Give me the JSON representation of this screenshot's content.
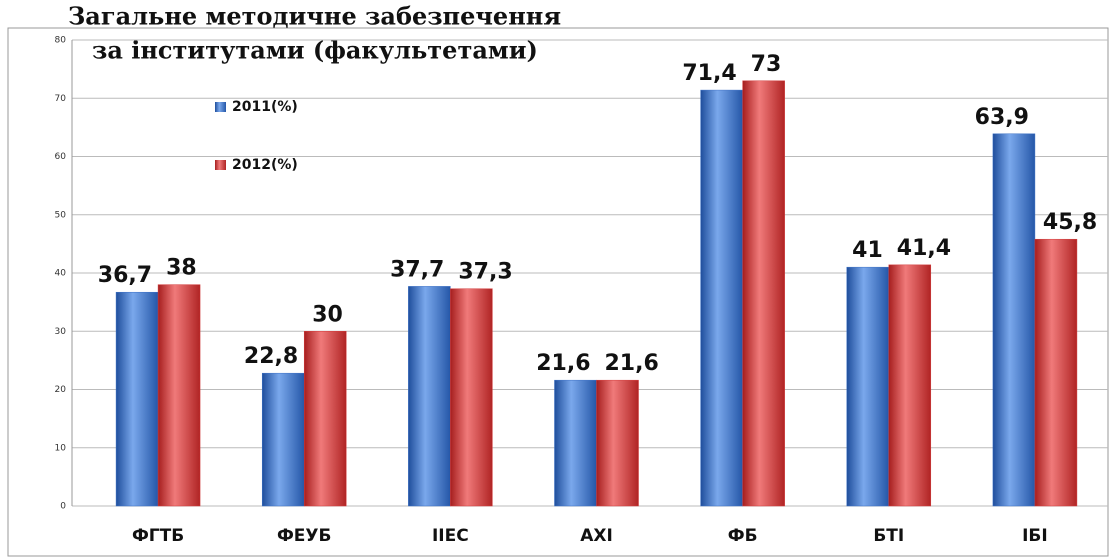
{
  "chart_data": {
    "type": "bar",
    "title": [
      "Загальне методичне забезпечення",
      "за інститутами (факультетами)"
    ],
    "categories": [
      "ФГТБ",
      "ФЕУБ",
      "ІІЕС",
      "АХІ",
      "ФБ",
      "БТІ",
      "ІБІ"
    ],
    "series": [
      {
        "name": "2011(%)",
        "color": "#3a6fc4",
        "values": [
          36.7,
          22.8,
          37.7,
          21.6,
          71.4,
          41,
          63.9
        ],
        "value_labels": [
          "36,7",
          "22,8",
          "37,7",
          "21,6",
          "71,4",
          "41",
          "63,9"
        ]
      },
      {
        "name": "2012(%)",
        "color": "#d23c3c",
        "values": [
          38,
          30,
          37.3,
          21.6,
          73,
          41.4,
          45.8
        ],
        "value_labels": [
          "38",
          "30",
          "37,3",
          "21,6",
          "73",
          "41,4",
          "45,8"
        ]
      }
    ],
    "ylim": [
      0,
      80
    ],
    "yticks": [
      0,
      10,
      20,
      30,
      40,
      50,
      60,
      70,
      80
    ],
    "grid": true,
    "legend": "top-left"
  }
}
